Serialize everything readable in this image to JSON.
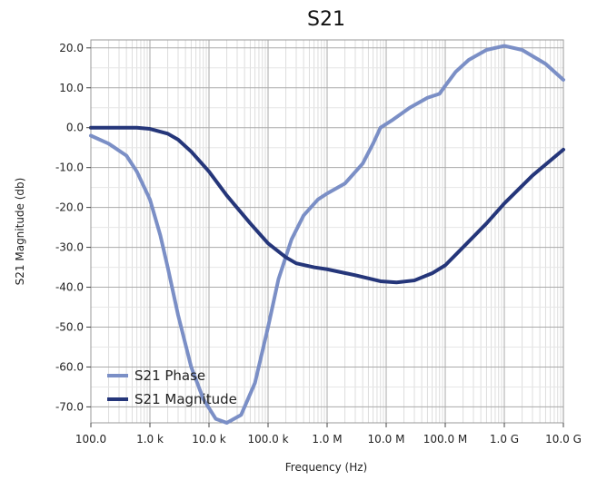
{
  "chart_data": {
    "type": "line",
    "title": "S21",
    "xlabel": "Frequency (Hz)",
    "ylabel": "S21 Magnitude (db)",
    "x_scale": "log",
    "xlim": [
      100,
      10000000000
    ],
    "ylim": [
      -74,
      22
    ],
    "grid": true,
    "legend_position": "bottom-left",
    "x_ticks": [
      {
        "value": 100,
        "label": "100.0"
      },
      {
        "value": 1000,
        "label": "1.0 k"
      },
      {
        "value": 10000,
        "label": "10.0 k"
      },
      {
        "value": 100000,
        "label": "100.0 k"
      },
      {
        "value": 1000000,
        "label": "1.0 M"
      },
      {
        "value": 10000000,
        "label": "10.0 M"
      },
      {
        "value": 100000000,
        "label": "100.0 M"
      },
      {
        "value": 1000000000,
        "label": "1.0 G"
      },
      {
        "value": 10000000000,
        "label": "10.0 G"
      }
    ],
    "y_ticks": [
      {
        "value": 20,
        "label": "20.0"
      },
      {
        "value": 10,
        "label": "10.0"
      },
      {
        "value": 0,
        "label": "0.0"
      },
      {
        "value": -10,
        "label": "-10.0"
      },
      {
        "value": -20,
        "label": "-20.0"
      },
      {
        "value": -30,
        "label": "-30.0"
      },
      {
        "value": -40,
        "label": "-40.0"
      },
      {
        "value": -50,
        "label": "-50.0"
      },
      {
        "value": -60,
        "label": "-60.0"
      },
      {
        "value": -70,
        "label": "-70.0"
      }
    ],
    "series": [
      {
        "name": "S21 Phase",
        "color": "#7b8fc6",
        "points": [
          [
            100,
            -2
          ],
          [
            200,
            -4
          ],
          [
            400,
            -7
          ],
          [
            600,
            -11
          ],
          [
            1000,
            -18
          ],
          [
            1500,
            -27
          ],
          [
            2000,
            -35
          ],
          [
            3000,
            -47
          ],
          [
            5000,
            -60
          ],
          [
            8000,
            -68
          ],
          [
            13000,
            -73
          ],
          [
            20000,
            -74
          ],
          [
            35000,
            -72
          ],
          [
            60000,
            -64
          ],
          [
            100000,
            -50
          ],
          [
            150000,
            -38
          ],
          [
            250000,
            -28
          ],
          [
            400000,
            -22
          ],
          [
            700000,
            -18
          ],
          [
            1000000,
            -16.5
          ],
          [
            2000000,
            -14
          ],
          [
            4000000,
            -9
          ],
          [
            6000000,
            -4
          ],
          [
            8000000,
            0
          ],
          [
            13000000,
            2
          ],
          [
            25000000,
            5
          ],
          [
            50000000,
            7.5
          ],
          [
            80000000,
            8.5
          ],
          [
            100000000,
            10.5
          ],
          [
            150000000,
            14
          ],
          [
            250000000,
            17
          ],
          [
            500000000,
            19.5
          ],
          [
            1000000000,
            20.5
          ],
          [
            2000000000,
            19.5
          ],
          [
            5000000000,
            16
          ],
          [
            10000000000,
            12
          ]
        ]
      },
      {
        "name": "S21 Magnitude",
        "color": "#25367a",
        "points": [
          [
            100,
            0
          ],
          [
            300,
            0
          ],
          [
            600,
            0
          ],
          [
            1000,
            -0.3
          ],
          [
            2000,
            -1.5
          ],
          [
            3000,
            -3
          ],
          [
            5000,
            -6
          ],
          [
            10000,
            -11
          ],
          [
            20000,
            -17
          ],
          [
            50000,
            -24
          ],
          [
            100000,
            -29
          ],
          [
            200000,
            -32.5
          ],
          [
            300000,
            -34
          ],
          [
            600000,
            -35
          ],
          [
            1000000,
            -35.5
          ],
          [
            3000000,
            -37
          ],
          [
            8000000,
            -38.5
          ],
          [
            15000000,
            -38.8
          ],
          [
            30000000,
            -38.3
          ],
          [
            60000000,
            -36.5
          ],
          [
            100000000,
            -34.5
          ],
          [
            200000000,
            -30
          ],
          [
            500000000,
            -24
          ],
          [
            1000000000,
            -19
          ],
          [
            3000000000,
            -12
          ],
          [
            10000000000,
            -5.5
          ]
        ]
      }
    ]
  }
}
